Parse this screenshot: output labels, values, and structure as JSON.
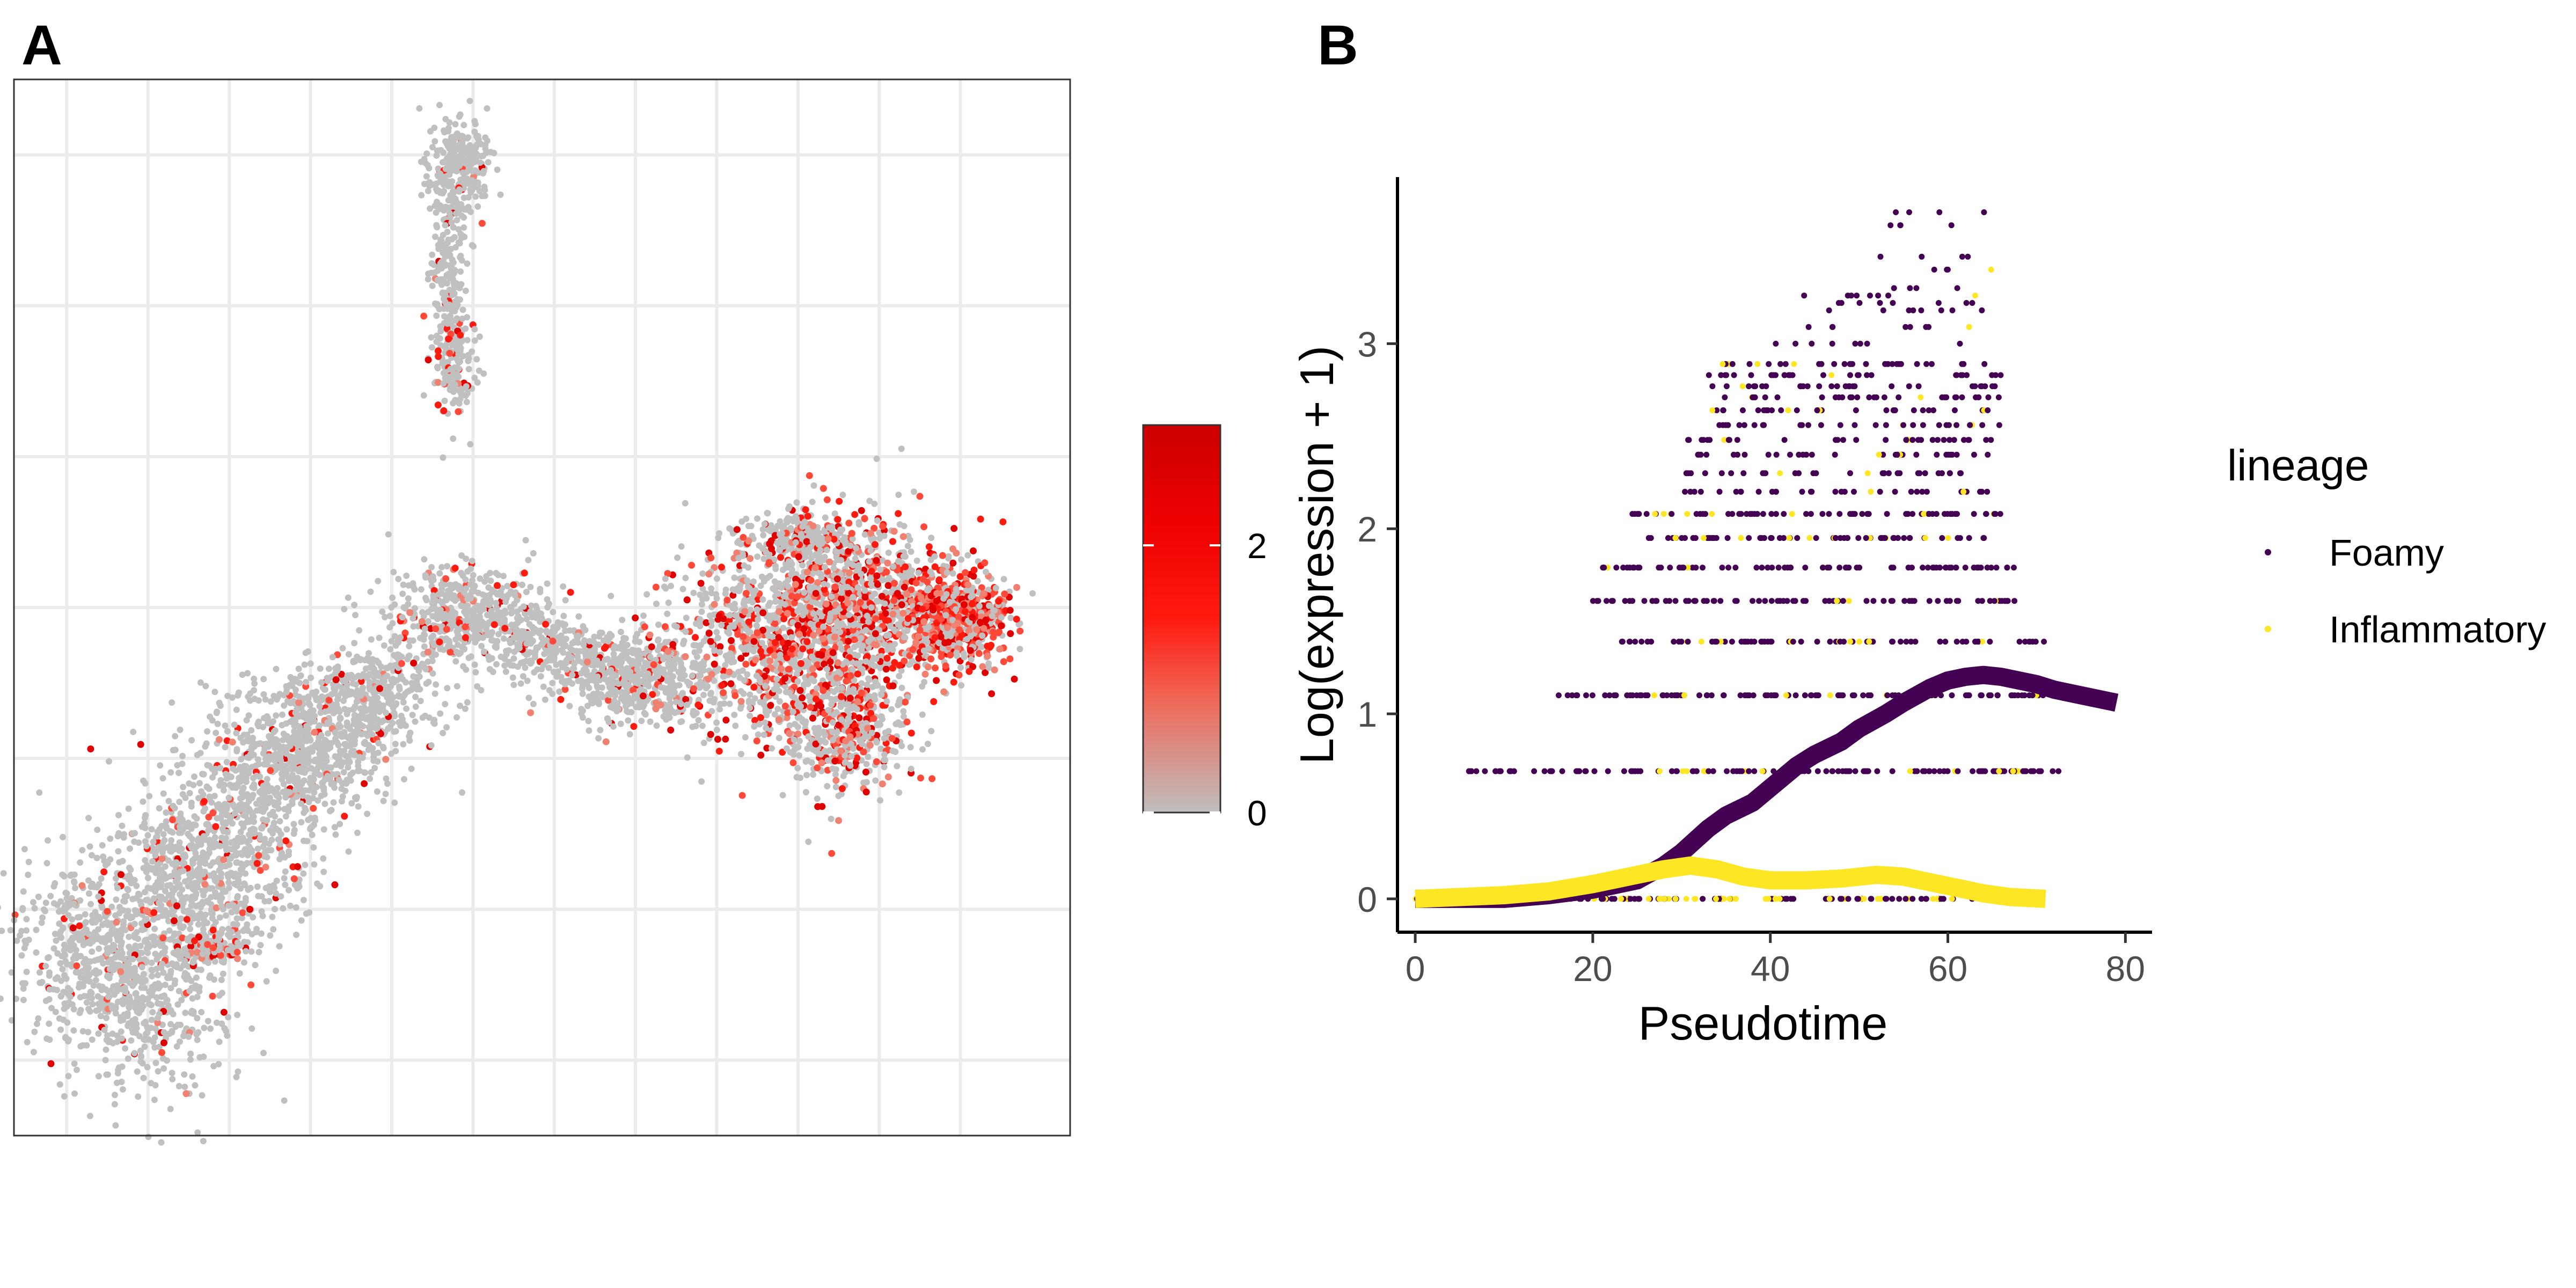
{
  "panels": {
    "a_label": "A",
    "b_label": "B"
  },
  "chart_data": [
    {
      "type": "scatter",
      "panel": "A",
      "title": "",
      "xlabel": "",
      "ylabel": "",
      "grid": true,
      "axes_ticks_shown": false,
      "colorbar": {
        "ticks": [
          "0",
          "2"
        ],
        "tick_values": [
          0,
          2
        ],
        "range": [
          0,
          2.9
        ],
        "colors": [
          "#bebebe",
          "#ee6b5b",
          "#ff1a10",
          "#ee0000",
          "#cc0000"
        ]
      },
      "point_color_low": "#bebebe",
      "point_color_high": "#ff0000",
      "clusters": [
        {
          "name_hint": "top stem",
          "cx": 2.4,
          "cy": 6.2,
          "spread": [
            0.15,
            1.4
          ],
          "expression_share": 0.08
        },
        {
          "name_hint": "left arm",
          "cx": 0.8,
          "cy": -2.2,
          "spread": [
            1.3,
            1.2
          ],
          "expression_share": 0.06
        },
        {
          "name_hint": "bridge",
          "cx": 3.0,
          "cy": 0.7,
          "spread": [
            1.2,
            0.4
          ],
          "expression_share": 0.1
        },
        {
          "name_hint": "right lobe",
          "cx": 7.4,
          "cy": 0.8,
          "spread": [
            1.4,
            0.9
          ],
          "expression_share": 0.35
        }
      ]
    },
    {
      "type": "scatter",
      "panel": "B",
      "title": "",
      "xlabel": "Pseudotime",
      "ylabel": "Log(expression + 1)",
      "xlim": [
        -2,
        83
      ],
      "ylim": [
        -0.18,
        3.9
      ],
      "xticks": [
        "0",
        "20",
        "40",
        "60",
        "80"
      ],
      "xtick_values": [
        0,
        20,
        40,
        60,
        80
      ],
      "yticks": [
        "0",
        "1",
        "2",
        "3"
      ],
      "ytick_values": [
        0,
        1,
        2,
        3
      ],
      "grid": false,
      "legend": {
        "title": "lineage",
        "position": "right",
        "entries": [
          {
            "name": "Foamy",
            "color": "#440154"
          },
          {
            "name": "Inflammatory",
            "color": "#fde725"
          }
        ]
      },
      "expression_levels": [
        0,
        0.69,
        1.1,
        1.39,
        1.61,
        1.79,
        1.95,
        2.08,
        2.2,
        2.3,
        2.4,
        2.48,
        2.56,
        2.64,
        2.71,
        2.77,
        2.83,
        2.89,
        3.0,
        3.09,
        3.18,
        3.22,
        3.26,
        3.3,
        3.4,
        3.47,
        3.64,
        3.71
      ],
      "series": [
        {
          "name": "Foamy",
          "color": "#440154",
          "x_range": [
            0,
            79
          ],
          "smooth_x": [
            0,
            5,
            10,
            15,
            20,
            25,
            28,
            30,
            33,
            35,
            38,
            40,
            43,
            45,
            48,
            50,
            53,
            55,
            58,
            60,
            62,
            64,
            66,
            68,
            70,
            72,
            75,
            77,
            79
          ],
          "smooth_y": [
            0,
            0.0,
            0.0,
            0.02,
            0.05,
            0.1,
            0.18,
            0.25,
            0.38,
            0.45,
            0.52,
            0.6,
            0.72,
            0.78,
            0.85,
            0.92,
            1.0,
            1.06,
            1.14,
            1.18,
            1.2,
            1.21,
            1.2,
            1.18,
            1.16,
            1.13,
            1.1,
            1.08,
            1.06
          ]
        },
        {
          "name": "Inflammatory",
          "color": "#fde725",
          "x_range": [
            0,
            71
          ],
          "smooth_x": [
            0,
            5,
            10,
            15,
            20,
            25,
            28,
            31,
            34,
            37,
            40,
            44,
            48,
            52,
            55,
            58,
            61,
            64,
            67,
            71
          ],
          "smooth_y": [
            0,
            0.01,
            0.02,
            0.04,
            0.08,
            0.13,
            0.16,
            0.18,
            0.16,
            0.12,
            0.1,
            0.1,
            0.11,
            0.13,
            0.12,
            0.09,
            0.06,
            0.03,
            0.01,
            0.0
          ]
        }
      ]
    }
  ]
}
